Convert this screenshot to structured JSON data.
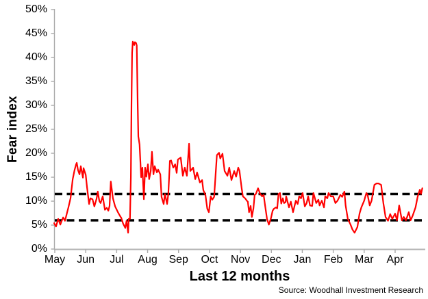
{
  "chart_data": {
    "type": "line",
    "ylabel": "Fear index",
    "xlabel": "Last 12 months",
    "source": "Source: Woodhall Investment Research",
    "legend": "none",
    "grid": false,
    "y_axis": {
      "min": 0,
      "max": 50,
      "tick_step": 5,
      "unit": "%",
      "tick_labels": [
        "50%",
        "45%",
        "40%",
        "35%",
        "30%",
        "25%",
        "20%",
        "15%",
        "10%",
        "5%",
        "0%"
      ]
    },
    "x_labels": [
      "May",
      "Jun",
      "Jul",
      "Aug",
      "Sep",
      "Oct",
      "Nov",
      "Dec",
      "Jan",
      "Feb",
      "Mar",
      "Apr"
    ],
    "thresholds": [
      {
        "name": "upper dashed band",
        "value": 11.5
      },
      {
        "name": "lower dashed band",
        "value": 6.0
      }
    ],
    "series": [
      {
        "name": "Fear index (last 12 months)",
        "color": "#FF0000",
        "x_unit": "months since May tick",
        "y_unit": "percent",
        "points": [
          [
            -0.02,
            5.4
          ],
          [
            0.04,
            4.7
          ],
          [
            0.11,
            6.3
          ],
          [
            0.18,
            5.1
          ],
          [
            0.22,
            5.8
          ],
          [
            0.27,
            6.6
          ],
          [
            0.33,
            5.9
          ],
          [
            0.4,
            7.7
          ],
          [
            0.44,
            8.7
          ],
          [
            0.51,
            10.6
          ],
          [
            0.58,
            14.6
          ],
          [
            0.64,
            16.5
          ],
          [
            0.69,
            17.7
          ],
          [
            0.71,
            18
          ],
          [
            0.75,
            16.5
          ],
          [
            0.8,
            15.6
          ],
          [
            0.84,
            17.3
          ],
          [
            0.91,
            14.9
          ],
          [
            0.93,
            16.9
          ],
          [
            1,
            15.5
          ],
          [
            1.04,
            13
          ],
          [
            1.11,
            9.4
          ],
          [
            1.15,
            10.6
          ],
          [
            1.22,
            10.4
          ],
          [
            1.28,
            8.9
          ],
          [
            1.35,
            10.5
          ],
          [
            1.39,
            12
          ],
          [
            1.44,
            10
          ],
          [
            1.48,
            9.6
          ],
          [
            1.55,
            11
          ],
          [
            1.62,
            8.2
          ],
          [
            1.68,
            8.6
          ],
          [
            1.73,
            8
          ],
          [
            1.77,
            9
          ],
          [
            1.81,
            14.1
          ],
          [
            1.88,
            10.6
          ],
          [
            1.95,
            8.9
          ],
          [
            2.04,
            7.7
          ],
          [
            2.1,
            7
          ],
          [
            2.15,
            6.5
          ],
          [
            2.21,
            5.3
          ],
          [
            2.28,
            4.4
          ],
          [
            2.32,
            5.9
          ],
          [
            2.37,
            3.4
          ],
          [
            2.39,
            6.3
          ],
          [
            2.43,
            6.3
          ],
          [
            2.46,
            15
          ],
          [
            2.48,
            30
          ],
          [
            2.5,
            41
          ],
          [
            2.52,
            43.3
          ],
          [
            2.57,
            42.6
          ],
          [
            2.59,
            43.2
          ],
          [
            2.63,
            43
          ],
          [
            2.65,
            42.5
          ],
          [
            2.68,
            30
          ],
          [
            2.7,
            23.5
          ],
          [
            2.72,
            22.7
          ],
          [
            2.74,
            21.8
          ],
          [
            2.79,
            15
          ],
          [
            2.83,
            17
          ],
          [
            2.88,
            10.4
          ],
          [
            2.92,
            17
          ],
          [
            2.96,
            15.1
          ],
          [
            3.01,
            17.7
          ],
          [
            3.05,
            14.6
          ],
          [
            3.1,
            16.3
          ],
          [
            3.14,
            20.3
          ],
          [
            3.19,
            15.6
          ],
          [
            3.23,
            17.3
          ],
          [
            3.3,
            16
          ],
          [
            3.34,
            16.6
          ],
          [
            3.41,
            15.6
          ],
          [
            3.45,
            10.9
          ],
          [
            3.52,
            9.4
          ],
          [
            3.56,
            11.5
          ],
          [
            3.63,
            9.4
          ],
          [
            3.67,
            11.5
          ],
          [
            3.72,
            18.4
          ],
          [
            3.76,
            18.5
          ],
          [
            3.83,
            17
          ],
          [
            3.89,
            17.7
          ],
          [
            3.94,
            15.9
          ],
          [
            3.98,
            18.7
          ],
          [
            4.07,
            19.1
          ],
          [
            4.14,
            15.3
          ],
          [
            4.2,
            17
          ],
          [
            4.27,
            15.3
          ],
          [
            4.34,
            22
          ],
          [
            4.38,
            16.3
          ],
          [
            4.47,
            17
          ],
          [
            4.54,
            14.6
          ],
          [
            4.6,
            16
          ],
          [
            4.69,
            13.9
          ],
          [
            4.76,
            14.4
          ],
          [
            4.8,
            12.3
          ],
          [
            4.87,
            11.3
          ],
          [
            4.93,
            8.4
          ],
          [
            4.98,
            7.7
          ],
          [
            5.04,
            11
          ],
          [
            5.09,
            10.3
          ],
          [
            5.15,
            10.9
          ],
          [
            5.24,
            19.6
          ],
          [
            5.31,
            20.1
          ],
          [
            5.35,
            18.9
          ],
          [
            5.42,
            19.9
          ],
          [
            5.49,
            16.3
          ],
          [
            5.58,
            15.3
          ],
          [
            5.64,
            17
          ],
          [
            5.71,
            14.4
          ],
          [
            5.8,
            16.3
          ],
          [
            5.86,
            15.1
          ],
          [
            5.93,
            17
          ],
          [
            5.97,
            16.3
          ],
          [
            6.04,
            12.7
          ],
          [
            6.08,
            11
          ],
          [
            6.15,
            10.6
          ],
          [
            6.22,
            10
          ],
          [
            6.24,
            9.9
          ],
          [
            6.28,
            7.7
          ],
          [
            6.33,
            9
          ],
          [
            6.37,
            6.7
          ],
          [
            6.42,
            8.5
          ],
          [
            6.46,
            11.3
          ],
          [
            6.5,
            11.5
          ],
          [
            6.57,
            12.7
          ],
          [
            6.64,
            11.5
          ],
          [
            6.7,
            11
          ],
          [
            6.75,
            11.3
          ],
          [
            6.79,
            9.4
          ],
          [
            6.86,
            6.3
          ],
          [
            6.92,
            5.1
          ],
          [
            6.99,
            6.5
          ],
          [
            7.04,
            8
          ],
          [
            7.08,
            8.4
          ],
          [
            7.15,
            8.7
          ],
          [
            7.19,
            8.5
          ],
          [
            7.23,
            11.5
          ],
          [
            7.28,
            11.7
          ],
          [
            7.32,
            9.5
          ],
          [
            7.37,
            10.6
          ],
          [
            7.41,
            9.6
          ],
          [
            7.46,
            9.8
          ],
          [
            7.48,
            11
          ],
          [
            7.57,
            8.7
          ],
          [
            7.63,
            9.9
          ],
          [
            7.7,
            7.7
          ],
          [
            7.79,
            10.1
          ],
          [
            7.85,
            9.4
          ],
          [
            7.9,
            11
          ],
          [
            7.96,
            10.6
          ],
          [
            8.01,
            11.7
          ],
          [
            8.08,
            8.9
          ],
          [
            8.14,
            9.6
          ],
          [
            8.19,
            11
          ],
          [
            8.25,
            9.1
          ],
          [
            8.32,
            9
          ],
          [
            8.36,
            11.7
          ],
          [
            8.45,
            9.6
          ],
          [
            8.52,
            10.3
          ],
          [
            8.56,
            9.1
          ],
          [
            8.63,
            10.1
          ],
          [
            8.7,
            8.7
          ],
          [
            8.74,
            11
          ],
          [
            8.81,
            10.6
          ],
          [
            8.85,
            11.7
          ],
          [
            8.92,
            11
          ],
          [
            9,
            11
          ],
          [
            9.07,
            9.6
          ],
          [
            9.14,
            10.1
          ],
          [
            9.23,
            11.3
          ],
          [
            9.29,
            10.9
          ],
          [
            9.36,
            12
          ],
          [
            9.4,
            9.1
          ],
          [
            9.47,
            6.3
          ],
          [
            9.56,
            5.1
          ],
          [
            9.62,
            4.1
          ],
          [
            9.69,
            3.4
          ],
          [
            9.78,
            4.6
          ],
          [
            9.85,
            7.4
          ],
          [
            9.91,
            8.7
          ],
          [
            10,
            10.1
          ],
          [
            10.07,
            11.7
          ],
          [
            10.11,
            11.3
          ],
          [
            10.18,
            9.1
          ],
          [
            10.24,
            10.1
          ],
          [
            10.33,
            13.4
          ],
          [
            10.4,
            13.7
          ],
          [
            10.46,
            13.7
          ],
          [
            10.55,
            13.4
          ],
          [
            10.62,
            9.6
          ],
          [
            10.69,
            6.7
          ],
          [
            10.77,
            5.9
          ],
          [
            10.84,
            7.3
          ],
          [
            10.91,
            6.3
          ],
          [
            11,
            7.4
          ],
          [
            11.06,
            6
          ],
          [
            11.13,
            9.1
          ],
          [
            11.22,
            6
          ],
          [
            11.28,
            6.7
          ],
          [
            11.35,
            6
          ],
          [
            11.44,
            7.7
          ],
          [
            11.5,
            6
          ],
          [
            11.57,
            7
          ],
          [
            11.66,
            8.7
          ],
          [
            11.73,
            11
          ],
          [
            11.8,
            12.4
          ],
          [
            11.84,
            11.5
          ],
          [
            11.88,
            12.7
          ]
        ]
      }
    ],
    "colors": {
      "line": "#FF0000",
      "threshold": "#000000",
      "axis": "#A9A9A9",
      "background": "#FFFFFF",
      "text": "#000000"
    }
  }
}
